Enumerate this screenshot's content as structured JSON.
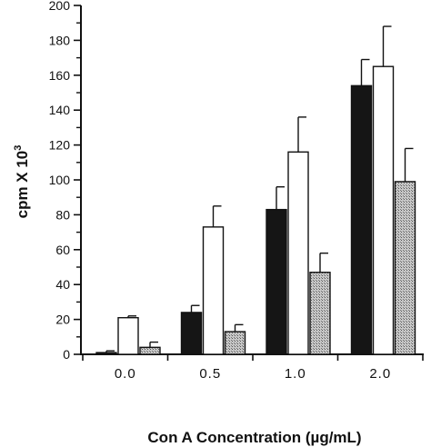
{
  "chart_data": {
    "type": "bar",
    "categories": [
      "0.0",
      "0.5",
      "1.0",
      "2.0"
    ],
    "series": [
      {
        "values": [
          1,
          24,
          83,
          154
        ],
        "errors": [
          1,
          4,
          13,
          15
        ],
        "fill": "black"
      },
      {
        "values": [
          21,
          73,
          116,
          165
        ],
        "errors": [
          1,
          12,
          20,
          23
        ],
        "fill": "white"
      },
      {
        "values": [
          4,
          13,
          47,
          99
        ],
        "errors": [
          3,
          4,
          11,
          19
        ],
        "fill": "gray-hatched"
      }
    ],
    "xlabel": "Con A Concentration (µg/mL)",
    "ylabel_base": "cpm X 10",
    "ylabel_exponent": "3",
    "ylim": [
      0,
      200
    ],
    "yticks": [
      "0",
      "20",
      "40",
      "60",
      "80",
      "100",
      "120",
      "140",
      "160",
      "180",
      "200"
    ],
    "grid": false,
    "legend": "none"
  },
  "colors": {
    "black_bar": "#151515",
    "white_bar": "#ffffff",
    "hatched_bar": "#9a9a9a",
    "axis": "#111111"
  }
}
